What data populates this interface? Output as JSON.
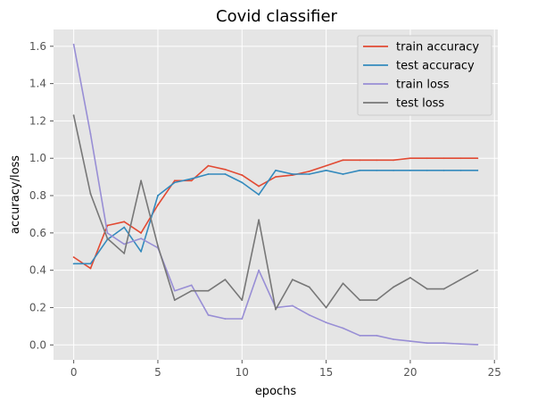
{
  "chart_data": {
    "type": "line",
    "title": "Covid classifier",
    "xlabel": "epochs",
    "ylabel": "accuracy/loss",
    "xlim": [
      -1.2,
      25.2
    ],
    "ylim": [
      -0.08,
      1.69
    ],
    "xticks": [
      0,
      5,
      10,
      15,
      20,
      25
    ],
    "yticks": [
      0.0,
      0.2,
      0.4,
      0.6,
      0.8,
      1.0,
      1.2,
      1.4,
      1.6
    ],
    "grid": true,
    "legend_position": "top-right",
    "x": [
      0,
      1,
      2,
      3,
      4,
      5,
      6,
      7,
      8,
      9,
      10,
      11,
      12,
      13,
      14,
      15,
      16,
      17,
      18,
      19,
      20,
      21,
      22,
      23,
      24
    ],
    "series": [
      {
        "name": "train accuracy",
        "color": "#e24a33",
        "values": [
          0.47,
          0.41,
          0.64,
          0.66,
          0.6,
          0.75,
          0.88,
          0.88,
          0.96,
          0.94,
          0.91,
          0.85,
          0.9,
          0.91,
          0.93,
          0.96,
          0.99,
          0.99,
          0.99,
          0.99,
          1.0,
          1.0,
          1.0,
          1.0,
          1.0
        ]
      },
      {
        "name": "test accuracy",
        "color": "#348abd",
        "values": [
          0.435,
          0.435,
          0.565,
          0.63,
          0.5,
          0.8,
          0.87,
          0.89,
          0.915,
          0.915,
          0.87,
          0.805,
          0.935,
          0.915,
          0.915,
          0.935,
          0.915,
          0.935,
          0.935,
          0.935,
          0.935,
          0.935,
          0.935,
          0.935,
          0.935
        ]
      },
      {
        "name": "train loss",
        "color": "#988ed5",
        "values": [
          1.61,
          1.13,
          0.6,
          0.54,
          0.57,
          0.52,
          0.29,
          0.32,
          0.16,
          0.14,
          0.14,
          0.4,
          0.2,
          0.21,
          0.16,
          0.12,
          0.09,
          0.05,
          0.05,
          0.03,
          0.02,
          0.01,
          0.01,
          0.005,
          0.002
        ]
      },
      {
        "name": "test loss",
        "color": "#777777",
        "values": [
          1.23,
          0.81,
          0.57,
          0.49,
          0.88,
          0.53,
          0.24,
          0.29,
          0.29,
          0.35,
          0.24,
          0.67,
          0.19,
          0.35,
          0.31,
          0.2,
          0.33,
          0.24,
          0.24,
          0.31,
          0.36,
          0.3,
          0.3,
          0.35,
          0.4
        ]
      }
    ]
  }
}
